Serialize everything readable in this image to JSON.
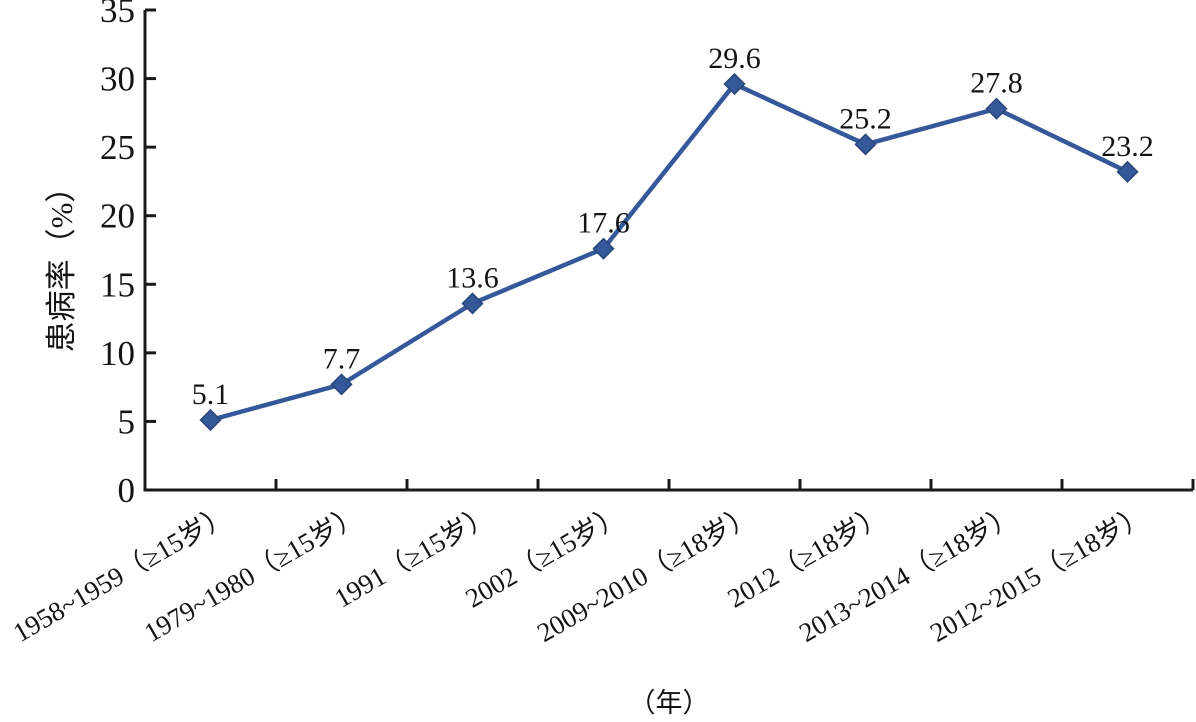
{
  "chart_data": {
    "type": "line",
    "title": "",
    "categories": [
      "1958~1959（≥15岁）",
      "1979~1980（≥15岁）",
      "1991（≥15岁）",
      "2002（≥15岁）",
      "2009~2010（≥18岁）",
      "2012（≥18岁）",
      "2013~2014（≥18岁）",
      "2012~2015（≥18岁）"
    ],
    "series": [
      {
        "name": "患病率",
        "values": [
          5.1,
          7.7,
          13.6,
          17.6,
          29.6,
          25.2,
          27.8,
          23.2
        ],
        "color": "#35589B",
        "marker": "diamond",
        "marker_border": "#2A4677"
      }
    ],
    "data_labels": [
      "5.1",
      "7.7",
      "13.6",
      "17.6",
      "29.6",
      "25.2",
      "27.8",
      "23.2"
    ],
    "xlabel": "（年）",
    "ylabel": "患病率（%）",
    "ylim": [
      0,
      35
    ],
    "yticks": [
      0,
      5,
      10,
      15,
      20,
      25,
      30,
      35
    ],
    "grid": false,
    "legend": "none",
    "axis_color": "#1a1a1a",
    "label_rotation_deg": -30
  }
}
